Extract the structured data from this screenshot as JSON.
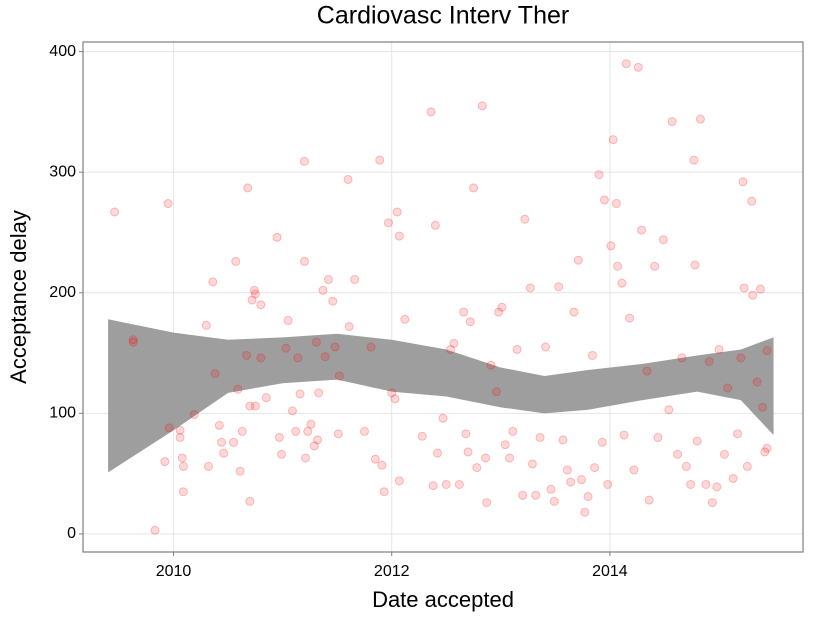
{
  "chart_data": {
    "type": "scatter",
    "title": "Cardiovasc Interv Ther",
    "xlabel": "Date accepted",
    "ylabel": "Acceptance delay",
    "xlim": [
      2009.17,
      2015.77
    ],
    "ylim": [
      -15,
      408
    ],
    "xticks": [
      2010,
      2012,
      2014
    ],
    "yticks": [
      0,
      100,
      200,
      300,
      400
    ],
    "grid": true,
    "series": [
      {
        "color": "#ff0000",
        "x": [
          2009.46,
          2009.63,
          2009.63,
          2009.83,
          2009.92,
          2009.95,
          2009.96,
          2010.06,
          2010.06,
          2010.08,
          2010.09,
          2010.09,
          2010.19,
          2010.3,
          2010.32,
          2010.36,
          2010.38,
          2010.42,
          2010.44,
          2010.46,
          2010.55,
          2010.57,
          2010.59,
          2010.61,
          2010.63,
          2010.67,
          2010.68,
          2010.7,
          2010.7,
          2010.72,
          2010.74,
          2010.75,
          2010.75,
          2010.8,
          2010.8,
          2010.85,
          2010.95,
          2010.97,
          2010.99,
          2011.03,
          2011.05,
          2011.09,
          2011.12,
          2011.14,
          2011.16,
          2011.2,
          2011.2,
          2011.21,
          2011.23,
          2011.26,
          2011.29,
          2011.31,
          2011.32,
          2011.33,
          2011.37,
          2011.39,
          2011.42,
          2011.46,
          2011.48,
          2011.51,
          2011.52,
          2011.6,
          2011.61,
          2011.66,
          2011.75,
          2011.81,
          2011.85,
          2011.89,
          2011.91,
          2011.93,
          2011.97,
          2012.0,
          2012.03,
          2012.05,
          2012.07,
          2012.07,
          2012.12,
          2012.28,
          2012.36,
          2012.38,
          2012.4,
          2012.42,
          2012.47,
          2012.5,
          2012.54,
          2012.57,
          2012.62,
          2012.66,
          2012.68,
          2012.7,
          2012.72,
          2012.75,
          2012.78,
          2012.83,
          2012.86,
          2012.87,
          2012.91,
          2012.96,
          2012.98,
          2013.01,
          2013.04,
          2013.08,
          2013.11,
          2013.15,
          2013.2,
          2013.22,
          2013.27,
          2013.29,
          2013.32,
          2013.36,
          2013.41,
          2013.46,
          2013.49,
          2013.53,
          2013.57,
          2013.61,
          2013.64,
          2013.67,
          2013.71,
          2013.74,
          2013.77,
          2013.8,
          2013.84,
          2013.86,
          2013.9,
          2013.93,
          2013.95,
          2013.98,
          2014.01,
          2014.03,
          2014.06,
          2014.07,
          2014.11,
          2014.13,
          2014.15,
          2014.18,
          2014.22,
          2014.26,
          2014.29,
          2014.34,
          2014.36,
          2014.41,
          2014.44,
          2014.49,
          2014.54,
          2014.57,
          2014.62,
          2014.66,
          2014.7,
          2014.74,
          2014.77,
          2014.78,
          2014.8,
          2014.83,
          2014.88,
          2014.91,
          2014.94,
          2014.98,
          2015.0,
          2015.05,
          2015.08,
          2015.13,
          2015.17,
          2015.2,
          2015.22,
          2015.23,
          2015.26,
          2015.3,
          2015.31,
          2015.35,
          2015.38,
          2015.4,
          2015.42,
          2015.44,
          2015.44
        ],
        "values": [
          267,
          159,
          161,
          3,
          60,
          274,
          88,
          86,
          80,
          63,
          56,
          35,
          99,
          173,
          56,
          209,
          133,
          90,
          76,
          67,
          76,
          226,
          120,
          52,
          85,
          148,
          287,
          106,
          27,
          194,
          202,
          199,
          106,
          190,
          146,
          113,
          246,
          80,
          66,
          154,
          177,
          102,
          85,
          146,
          116,
          309,
          226,
          63,
          85,
          91,
          73,
          159,
          78,
          117,
          202,
          147,
          211,
          193,
          155,
          83,
          131,
          294,
          172,
          211,
          85,
          155,
          62,
          310,
          57,
          35,
          258,
          117,
          112,
          267,
          247,
          44,
          178,
          81,
          350,
          40,
          256,
          67,
          96,
          41,
          153,
          158,
          41,
          184,
          83,
          68,
          176,
          287,
          55,
          355,
          63,
          26,
          140,
          118,
          184,
          188,
          74,
          63,
          85,
          153,
          32,
          261,
          204,
          58,
          32,
          80,
          155,
          37,
          27,
          205,
          78,
          53,
          43,
          184,
          227,
          45,
          18,
          31,
          148,
          55,
          298,
          76,
          277,
          41,
          239,
          327,
          274,
          222,
          208,
          82,
          390,
          179,
          53,
          387,
          252,
          135,
          28,
          222,
          80,
          244,
          103,
          342,
          66,
          146,
          56,
          41,
          310,
          223,
          77,
          344,
          41,
          143,
          26,
          39,
          153,
          66,
          121,
          46,
          83,
          146,
          292,
          204,
          56,
          276,
          198,
          126,
          203,
          105,
          68,
          152,
          71
        ]
      }
    ],
    "band": {
      "color": "#999999",
      "x": [
        2009.4,
        2010.0,
        2010.5,
        2011.0,
        2011.5,
        2012.0,
        2012.5,
        2013.0,
        2013.4,
        2013.8,
        2014.3,
        2014.8,
        2015.2,
        2015.5
      ],
      "upper": [
        178,
        167,
        161,
        163,
        166,
        161,
        153,
        138,
        131,
        136,
        141,
        148,
        153,
        163
      ],
      "lower": [
        51,
        86,
        117,
        125,
        128,
        118,
        114,
        105,
        100,
        103,
        111,
        118,
        111,
        82
      ]
    }
  }
}
